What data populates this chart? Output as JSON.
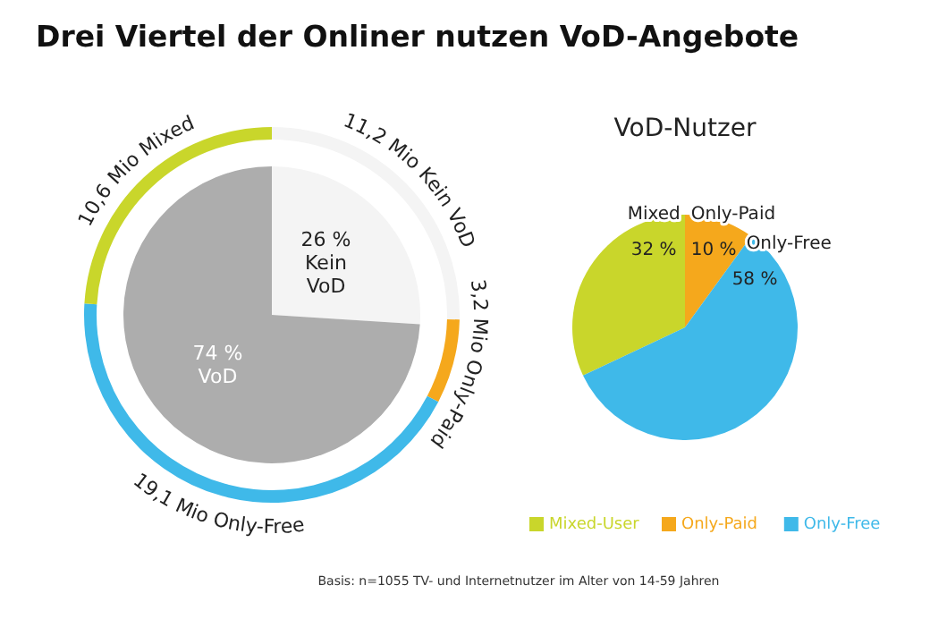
{
  "chart_data": [
    {
      "type": "pie",
      "title": "Drei Viertel der Onliner nutzen VoD-Angebote",
      "categories": [
        "Kein VoD",
        "VoD"
      ],
      "values": [
        26,
        74
      ],
      "colors": [
        "#f4f4f4",
        "#adadad"
      ],
      "value_labels": [
        "26 %",
        "74 %"
      ],
      "annotations": [
        "Basis: n=1055 TV- und Internetnutzer im Alter von 14-59 Jahren"
      ]
    },
    {
      "type": "donut",
      "categories": [
        "Kein VoD",
        "Only-Paid",
        "Only-Free",
        "Mixed"
      ],
      "values": [
        11.2,
        3.2,
        19.1,
        10.6
      ],
      "colors": [
        "#f4f4f4",
        "#f5a81c",
        "#3fb9e9",
        "#c9d62b"
      ],
      "value_labels": [
        "11,2 Mio",
        "3,2 Mio",
        "19,1 Mio",
        "10,6 Mio"
      ]
    },
    {
      "type": "pie",
      "title": "VoD-Nutzer",
      "categories": [
        "Mixed-User",
        "Only-Paid",
        "Only-Free"
      ],
      "values": [
        32,
        10,
        58
      ],
      "colors": [
        "#c9d62b",
        "#f5a81c",
        "#3fb9e9"
      ],
      "value_labels": [
        "Mixed\n32 %",
        "Only-Paid\n10 %",
        "Only-Free\n58 %"
      ],
      "legend": "bottom"
    }
  ]
}
